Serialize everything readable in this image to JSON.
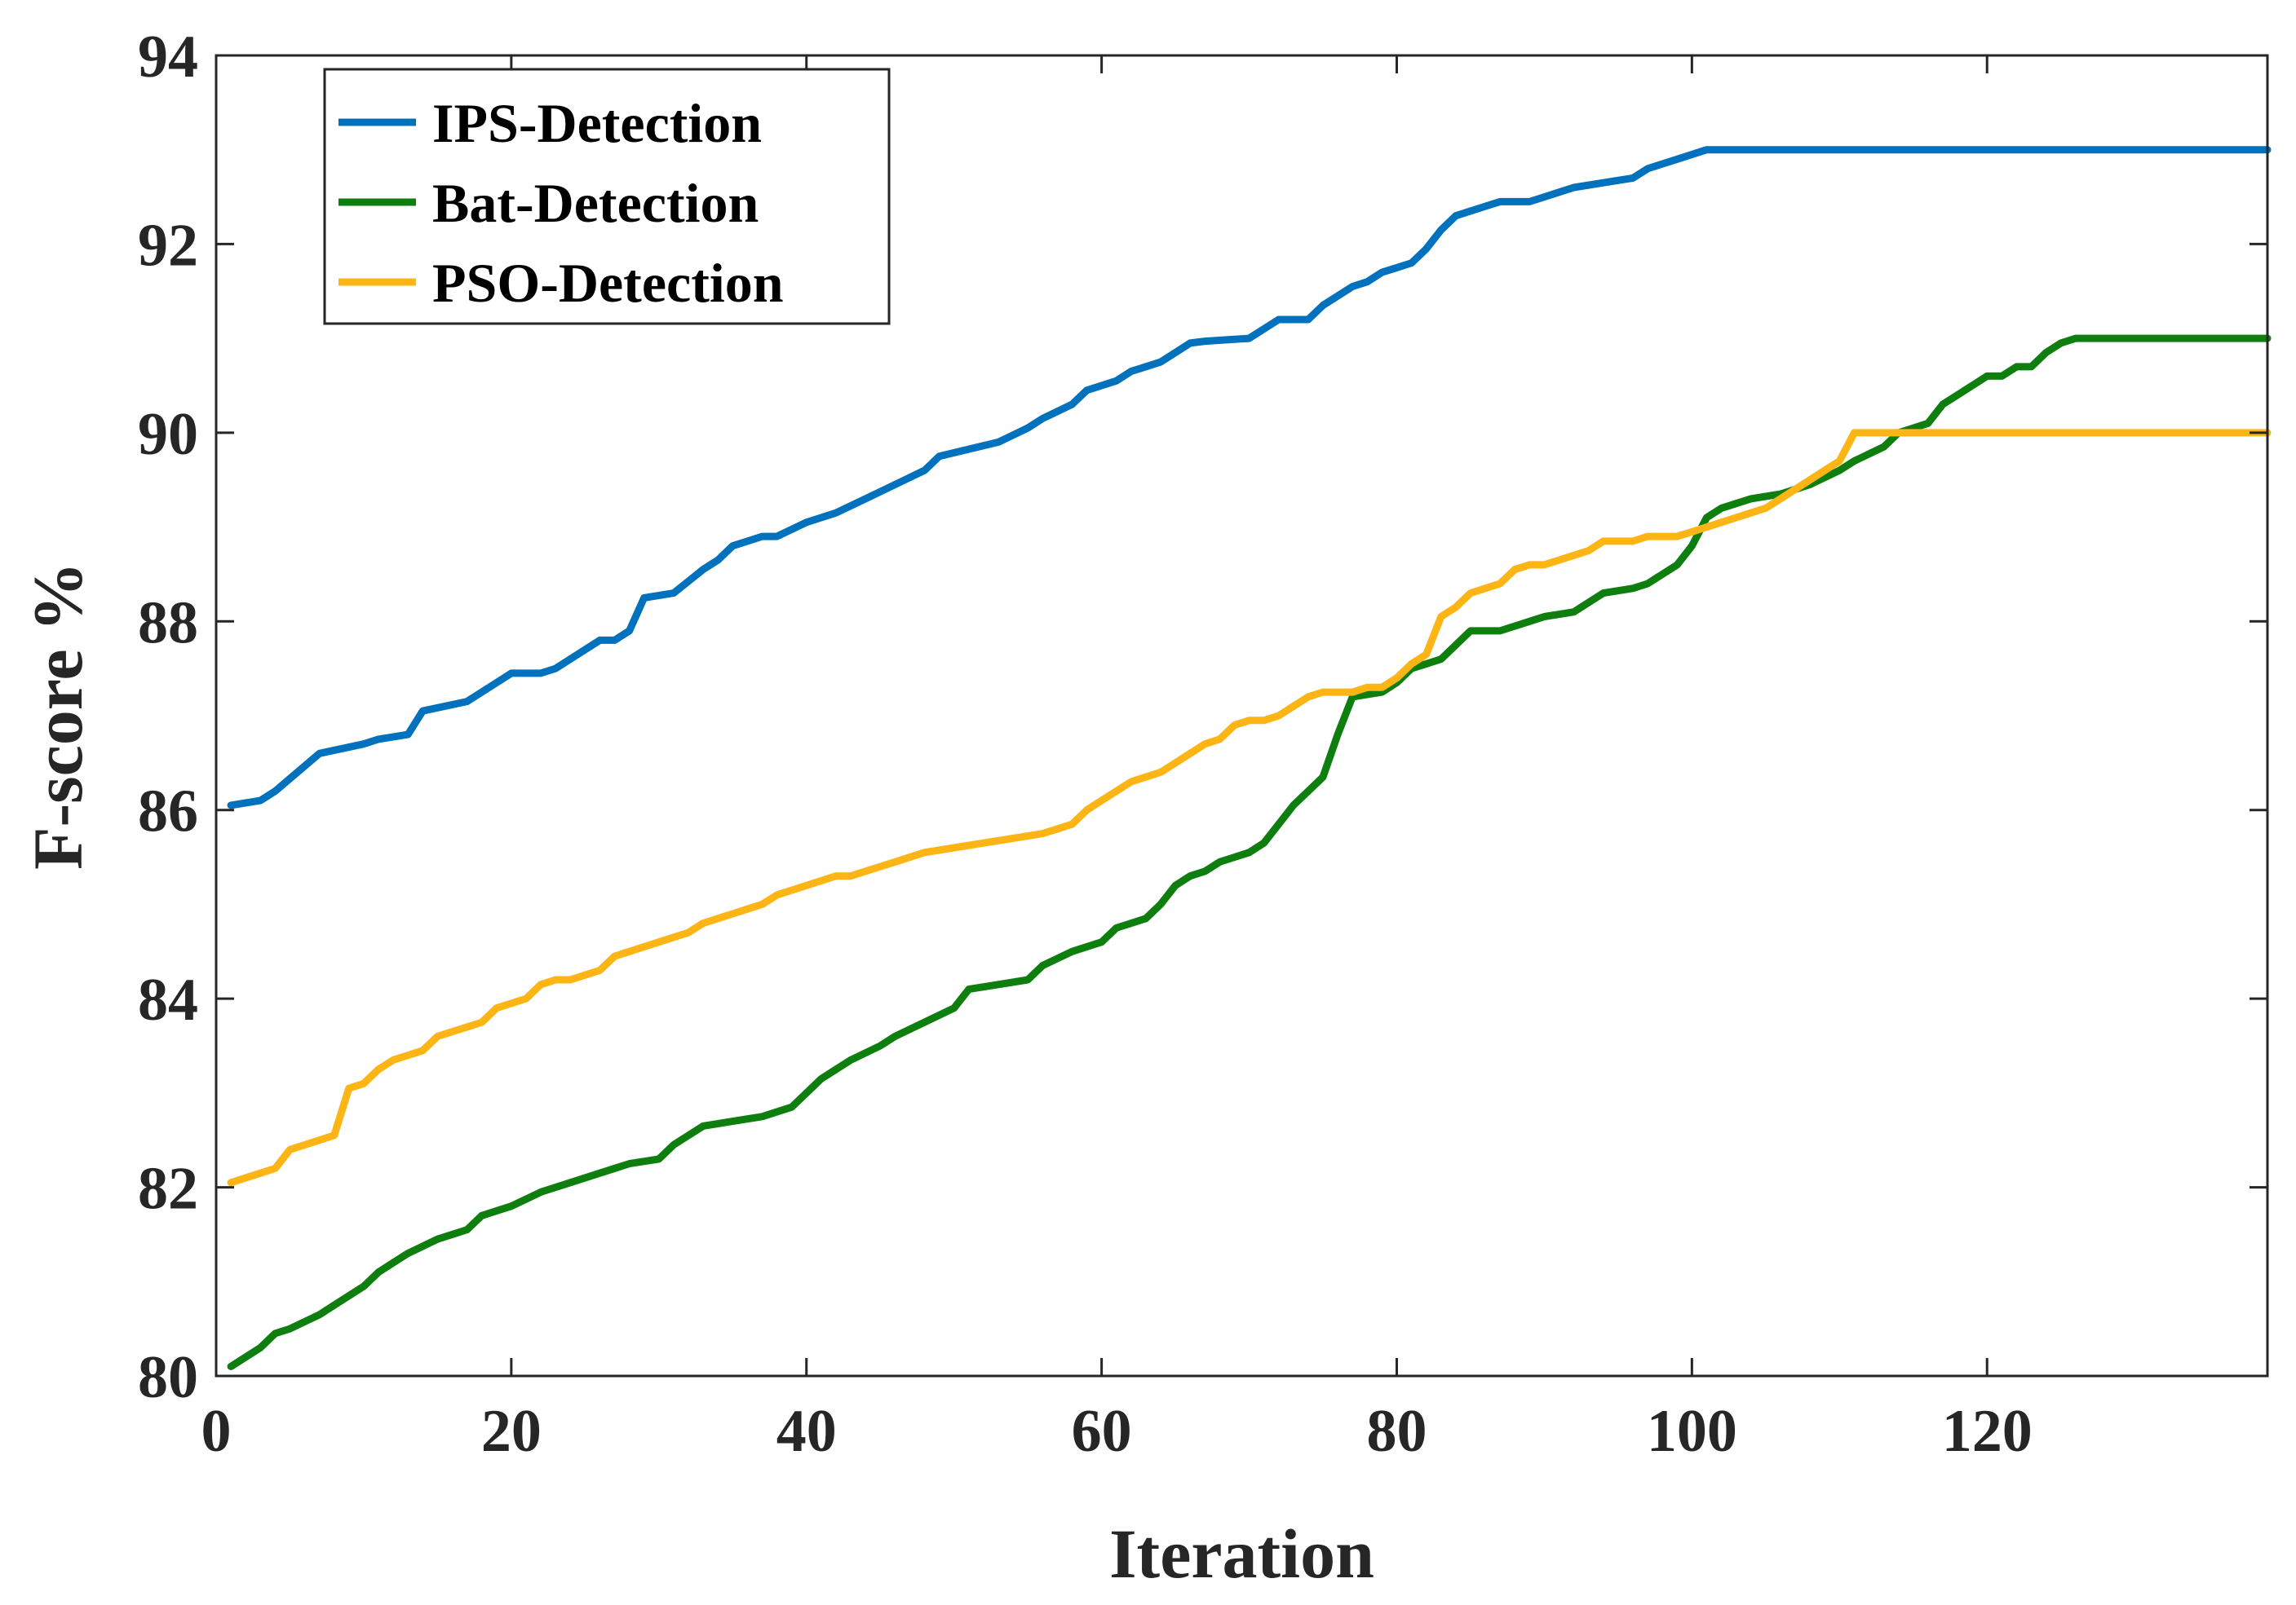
{
  "chart_data": {
    "type": "line",
    "title": "",
    "xlabel": "Iteration",
    "ylabel": "F-score %",
    "xlim": [
      0,
      139
    ],
    "ylim": [
      80,
      94
    ],
    "xticks": [
      0,
      20,
      40,
      60,
      80,
      100,
      120
    ],
    "yticks": [
      80,
      82,
      84,
      86,
      88,
      90,
      92,
      94
    ],
    "grid": false,
    "legend_position": "top-left",
    "series": [
      {
        "name": "IPS-Detection",
        "color": "#0072BD",
        "x": [
          1,
          3,
          4,
          7,
          10,
          11,
          13,
          14,
          17,
          19,
          20,
          22,
          23,
          24,
          26,
          27,
          28,
          29,
          31,
          33,
          34,
          35,
          37,
          38,
          40,
          41,
          42,
          44,
          46,
          48,
          49,
          53,
          55,
          56,
          58,
          59,
          60,
          61,
          62,
          64,
          65,
          66,
          67,
          70,
          72,
          74,
          75,
          76,
          77,
          78,
          79,
          80,
          81,
          82,
          83,
          84,
          86,
          87,
          89,
          90,
          92,
          94,
          96,
          97,
          99,
          101,
          139
        ],
        "y": [
          86.05,
          86.1,
          86.2,
          86.6,
          86.7,
          86.75,
          86.8,
          87.05,
          87.15,
          87.35,
          87.45,
          87.45,
          87.5,
          87.6,
          87.8,
          87.8,
          87.9,
          88.25,
          88.3,
          88.55,
          88.65,
          88.8,
          88.9,
          88.9,
          89.05,
          89.1,
          89.15,
          89.3,
          89.45,
          89.6,
          89.75,
          89.9,
          90.05,
          90.15,
          90.3,
          90.45,
          90.5,
          90.55,
          90.65,
          90.75,
          90.85,
          90.95,
          90.97,
          91.0,
          91.2,
          91.2,
          91.35,
          91.45,
          91.55,
          91.6,
          91.7,
          91.75,
          91.8,
          91.95,
          92.15,
          92.3,
          92.4,
          92.45,
          92.45,
          92.5,
          92.6,
          92.65,
          92.7,
          92.8,
          92.9,
          93.0,
          93.0
        ]
      },
      {
        "name": "Bat-Detection",
        "color": "#0E7F0E",
        "x": [
          1,
          3,
          4,
          5,
          7,
          8,
          10,
          11,
          12,
          13,
          15,
          17,
          18,
          20,
          22,
          24,
          26,
          28,
          30,
          31,
          33,
          35,
          37,
          39,
          40,
          41,
          43,
          45,
          46,
          48,
          50,
          51,
          53,
          55,
          56,
          58,
          60,
          61,
          62,
          63,
          64,
          65,
          66,
          67,
          68,
          69,
          70,
          71,
          72,
          73,
          74,
          75,
          76,
          77,
          79,
          80,
          81,
          82,
          83,
          84,
          85,
          86,
          87,
          89,
          90,
          92,
          94,
          96,
          97,
          99,
          100,
          101,
          102,
          104,
          106,
          108,
          110,
          111,
          113,
          114,
          115,
          116,
          117,
          118,
          119,
          120,
          121,
          122,
          123,
          124,
          125,
          126,
          139
        ],
        "y": [
          80.1,
          80.3,
          80.45,
          80.5,
          80.65,
          80.75,
          80.95,
          81.1,
          81.2,
          81.3,
          81.45,
          81.55,
          81.7,
          81.8,
          81.95,
          82.05,
          82.15,
          82.25,
          82.3,
          82.45,
          82.65,
          82.7,
          82.75,
          82.85,
          83.0,
          83.15,
          83.35,
          83.5,
          83.6,
          83.75,
          83.9,
          84.1,
          84.15,
          84.2,
          84.35,
          84.5,
          84.6,
          84.75,
          84.8,
          84.85,
          85.0,
          85.2,
          85.3,
          85.35,
          85.45,
          85.5,
          85.55,
          85.65,
          85.85,
          86.05,
          86.2,
          86.35,
          86.8,
          87.2,
          87.25,
          87.35,
          87.5,
          87.55,
          87.6,
          87.75,
          87.9,
          87.9,
          87.9,
          88.0,
          88.05,
          88.1,
          88.3,
          88.35,
          88.4,
          88.6,
          88.8,
          89.1,
          89.2,
          89.3,
          89.35,
          89.45,
          89.6,
          89.7,
          89.85,
          90.0,
          90.05,
          90.1,
          90.3,
          90.4,
          90.5,
          90.6,
          90.6,
          90.7,
          90.7,
          90.85,
          90.95,
          91.0,
          91.0
        ]
      },
      {
        "name": "PSO-Detection",
        "color": "#FDB515",
        "x": [
          1,
          3,
          4,
          5,
          6,
          7,
          8,
          9,
          10,
          11,
          12,
          13,
          14,
          15,
          16,
          17,
          18,
          19,
          20,
          21,
          22,
          23,
          24,
          25,
          26,
          27,
          28,
          29,
          30,
          31,
          32,
          33,
          34,
          35,
          36,
          37,
          38,
          39,
          40,
          41,
          42,
          43,
          44,
          46,
          48,
          50,
          52,
          54,
          56,
          57,
          58,
          59,
          60,
          61,
          62,
          63,
          64,
          65,
          66,
          67,
          68,
          69,
          70,
          71,
          72,
          73,
          74,
          75,
          76,
          77,
          78,
          79,
          80,
          81,
          82,
          83,
          84,
          85,
          86,
          87,
          88,
          89,
          90,
          91,
          92,
          93,
          94,
          95,
          96,
          97,
          98,
          99,
          100,
          101,
          102,
          103,
          104,
          105,
          106,
          107,
          108,
          109,
          110,
          111,
          139
        ],
        "y": [
          82.05,
          82.15,
          82.2,
          82.4,
          82.45,
          82.5,
          82.55,
          83.05,
          83.1,
          83.25,
          83.35,
          83.4,
          83.45,
          83.6,
          83.65,
          83.7,
          83.75,
          83.9,
          83.95,
          84.0,
          84.15,
          84.2,
          84.2,
          84.25,
          84.3,
          84.45,
          84.5,
          84.55,
          84.6,
          84.65,
          84.7,
          84.8,
          84.85,
          84.9,
          84.95,
          85.0,
          85.1,
          85.15,
          85.2,
          85.25,
          85.3,
          85.3,
          85.35,
          85.45,
          85.55,
          85.6,
          85.65,
          85.7,
          85.75,
          85.8,
          85.85,
          86.0,
          86.1,
          86.2,
          86.3,
          86.35,
          86.4,
          86.5,
          86.6,
          86.7,
          86.75,
          86.9,
          86.95,
          86.95,
          87.0,
          87.1,
          87.2,
          87.25,
          87.25,
          87.25,
          87.3,
          87.3,
          87.4,
          87.55,
          87.65,
          88.05,
          88.15,
          88.3,
          88.35,
          88.4,
          88.55,
          88.6,
          88.6,
          88.65,
          88.7,
          88.75,
          88.85,
          88.85,
          88.85,
          88.9,
          88.9,
          88.9,
          88.95,
          89.0,
          89.05,
          89.1,
          89.15,
          89.2,
          89.3,
          89.4,
          89.5,
          89.6,
          89.7,
          90.0,
          90.0
        ]
      }
    ]
  }
}
